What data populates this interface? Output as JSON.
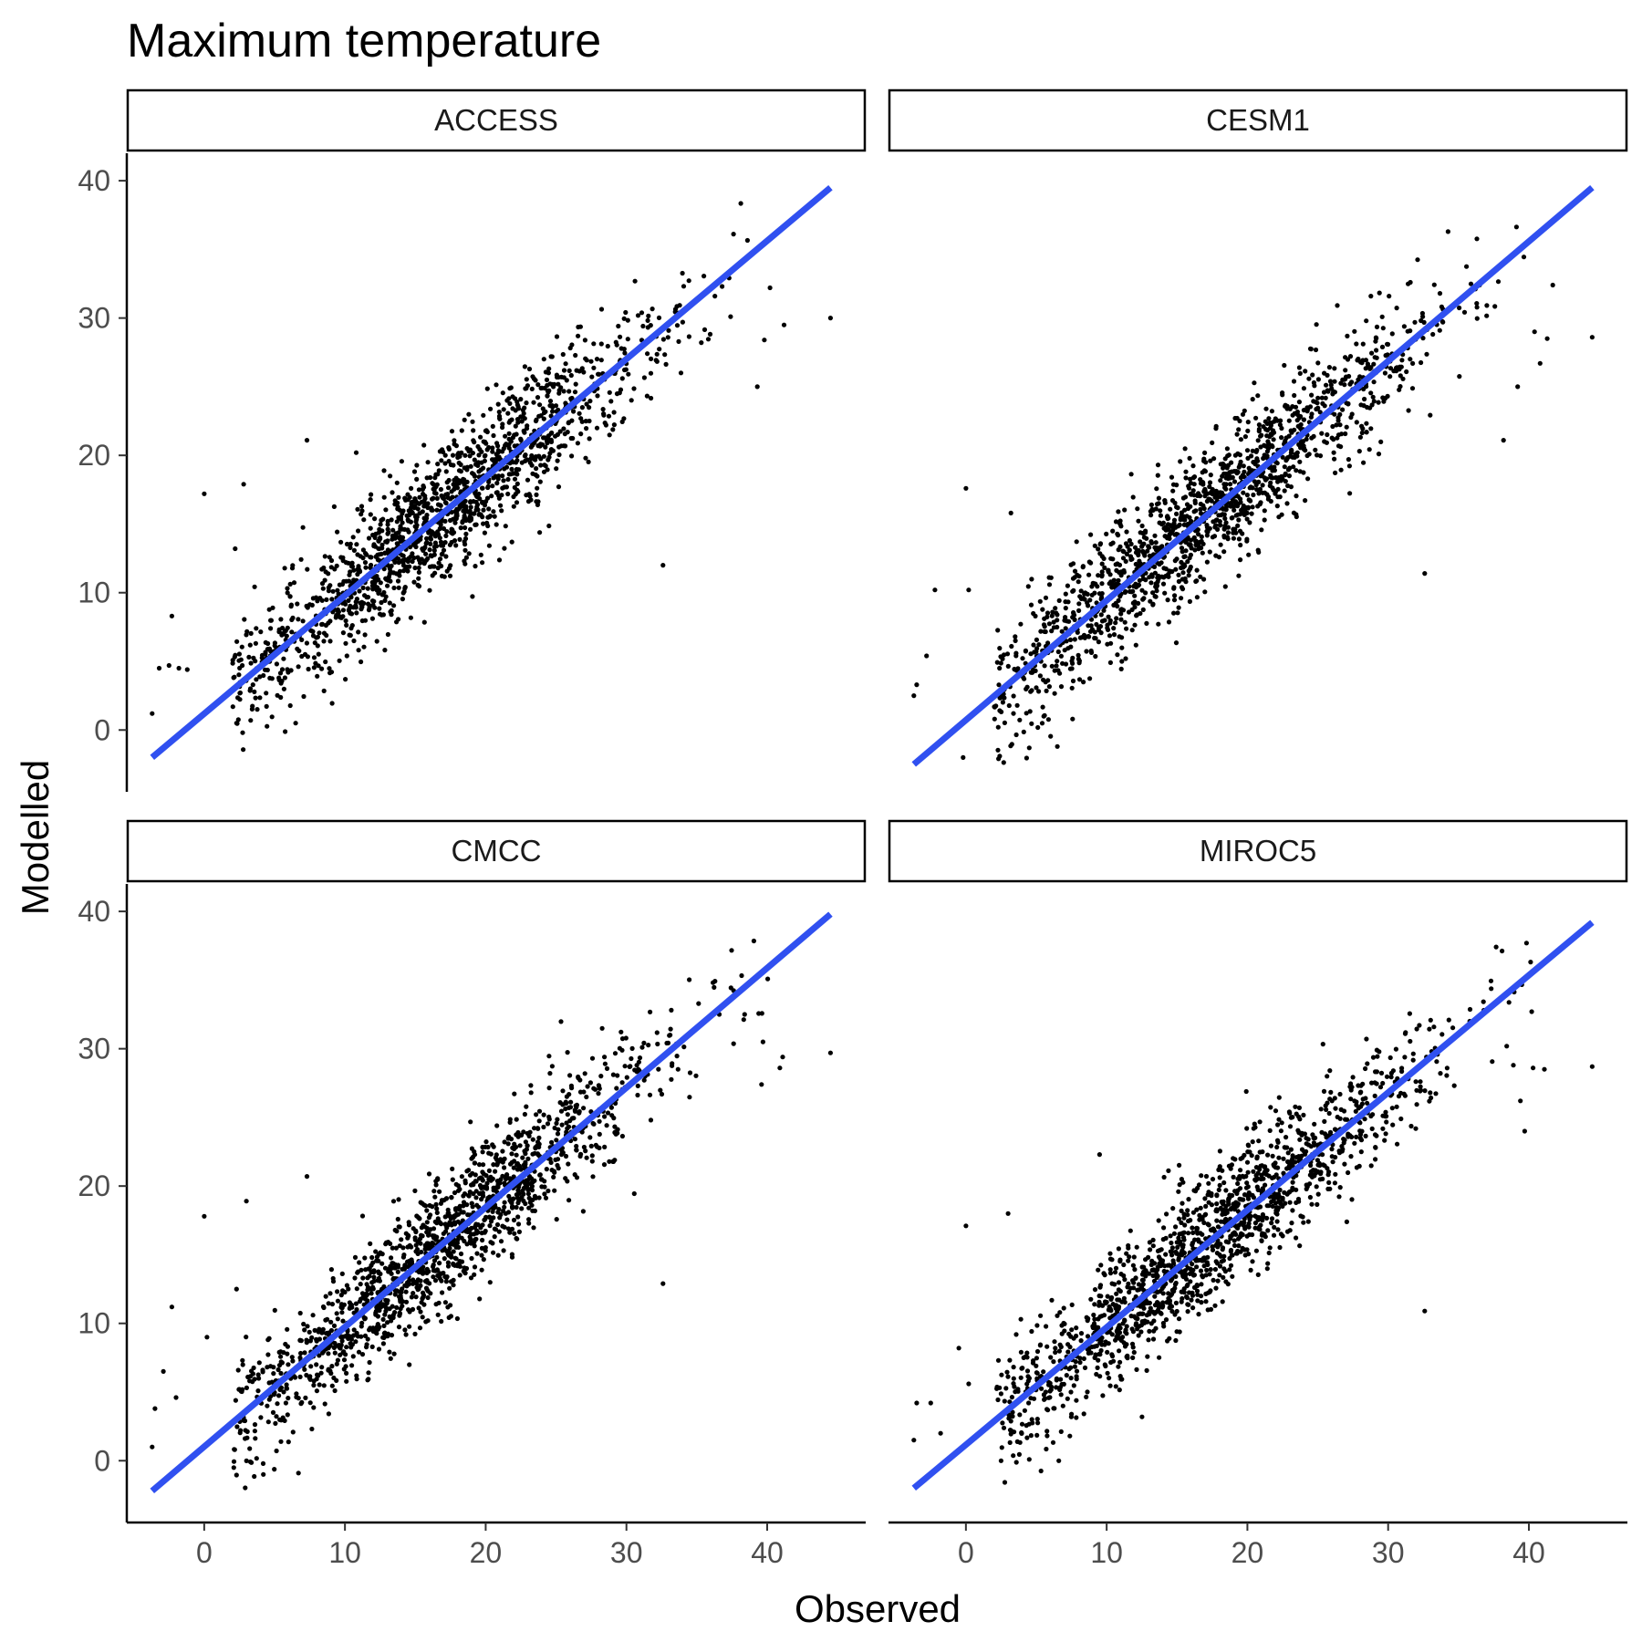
{
  "chart_data": {
    "type": "scatter",
    "title": "Maximum temperature",
    "xlabel": "Observed",
    "ylabel": "Modelled",
    "xlim": [
      -5.5,
      47
    ],
    "ylim": [
      -4.5,
      42
    ],
    "xticks": [
      0,
      10,
      20,
      30,
      40
    ],
    "yticks": [
      0,
      10,
      20,
      30,
      40
    ],
    "colors": {
      "points": "#000000",
      "fit_line": "#3050f0"
    },
    "panels": [
      {
        "name": "ACCESS",
        "fit_line": {
          "x": [
            -3.7,
            44.5
          ],
          "y": [
            -2.0,
            39.5
          ]
        },
        "cloud": {
          "n": 1500,
          "slope": 0.87,
          "intercept": 1.2,
          "noise": 2.4,
          "x_center": 17,
          "x_spread": 7.8
        },
        "outliers": [
          [
            -3.7,
            1.2
          ],
          [
            -3.2,
            4.5
          ],
          [
            -2.5,
            4.7
          ],
          [
            -2.3,
            8.3
          ],
          [
            -1.8,
            4.5
          ],
          [
            -1.2,
            4.4
          ],
          [
            0,
            17.2
          ],
          [
            2.2,
            13.2
          ],
          [
            2.8,
            17.9
          ],
          [
            2.3,
            0.5
          ],
          [
            3.3,
            0.7
          ],
          [
            6.5,
            0.5
          ],
          [
            7.3,
            21.1
          ],
          [
            10.8,
            20.2
          ],
          [
            27.1,
            19.8
          ],
          [
            32.6,
            12.0
          ],
          [
            44.5,
            30.0
          ],
          [
            39.3,
            25.0
          ],
          [
            41.2,
            29.5
          ],
          [
            40.2,
            32.2
          ],
          [
            36.8,
            32.3
          ],
          [
            37.4,
            30.1
          ],
          [
            39.8,
            28.4
          ]
        ]
      },
      {
        "name": "CESM1",
        "fit_line": {
          "x": [
            -3.7,
            44.5
          ],
          "y": [
            -2.5,
            39.5
          ]
        },
        "cloud": {
          "n": 1500,
          "slope": 0.87,
          "intercept": 0.8,
          "noise": 2.4,
          "x_center": 17,
          "x_spread": 7.8
        },
        "outliers": [
          [
            -3.7,
            2.5
          ],
          [
            -3.5,
            3.3
          ],
          [
            -2.8,
            5.4
          ],
          [
            -2.2,
            10.2
          ],
          [
            0,
            17.6
          ],
          [
            0.2,
            10.2
          ],
          [
            2.3,
            0.2
          ],
          [
            3.2,
            15.8
          ],
          [
            2.4,
            -1.9
          ],
          [
            4.5,
            -1.3
          ],
          [
            6.5,
            -1.2
          ],
          [
            -0.2,
            -2.0
          ],
          [
            32.6,
            11.4
          ],
          [
            38.2,
            21.1
          ],
          [
            44.5,
            28.6
          ],
          [
            40.4,
            29.0
          ],
          [
            41.3,
            28.5
          ],
          [
            39.2,
            25.0
          ],
          [
            40.8,
            26.7
          ],
          [
            41.7,
            32.4
          ],
          [
            36.5,
            32.4
          ]
        ]
      },
      {
        "name": "CMCC",
        "fit_line": {
          "x": [
            -3.7,
            44.5
          ],
          "y": [
            -2.2,
            39.8
          ]
        },
        "cloud": {
          "n": 1500,
          "slope": 0.87,
          "intercept": 1.0,
          "noise": 2.4,
          "x_center": 17,
          "x_spread": 7.8
        },
        "outliers": [
          [
            -3.7,
            1.0
          ],
          [
            -3.5,
            3.8
          ],
          [
            -2.9,
            6.5
          ],
          [
            -2.3,
            11.2
          ],
          [
            -2.0,
            4.6
          ],
          [
            0,
            17.8
          ],
          [
            0.2,
            9.0
          ],
          [
            2.3,
            12.5
          ],
          [
            3.0,
            18.9
          ],
          [
            2.1,
            -0.5
          ],
          [
            4.2,
            -1.0
          ],
          [
            6.7,
            -0.9
          ],
          [
            7.3,
            20.7
          ],
          [
            32.6,
            12.9
          ],
          [
            44.5,
            29.7
          ],
          [
            39.6,
            27.4
          ],
          [
            40.9,
            28.6
          ],
          [
            41.1,
            29.4
          ],
          [
            38.4,
            32.5
          ],
          [
            36.6,
            32.5
          ],
          [
            39.7,
            30.5
          ]
        ]
      },
      {
        "name": "MIROC5",
        "fit_line": {
          "x": [
            -3.7,
            44.5
          ],
          "y": [
            -2.0,
            39.2
          ]
        },
        "cloud": {
          "n": 1500,
          "slope": 0.87,
          "intercept": 1.0,
          "noise": 2.4,
          "x_center": 17,
          "x_spread": 7.8
        },
        "outliers": [
          [
            -3.7,
            1.5
          ],
          [
            -3.5,
            4.2
          ],
          [
            -2.5,
            4.2
          ],
          [
            -1.8,
            2.0
          ],
          [
            0,
            17.1
          ],
          [
            0.2,
            5.6
          ],
          [
            -0.5,
            8.2
          ],
          [
            3.0,
            18.0
          ],
          [
            2.5,
            0.0
          ],
          [
            4.5,
            0.1
          ],
          [
            6.6,
            0.0
          ],
          [
            9.5,
            22.3
          ],
          [
            32.6,
            10.9
          ],
          [
            44.5,
            28.7
          ],
          [
            39.7,
            24.0
          ],
          [
            40.3,
            28.6
          ],
          [
            41.1,
            28.5
          ],
          [
            40.2,
            32.7
          ],
          [
            36.8,
            32.8
          ],
          [
            38.9,
            28.8
          ],
          [
            39.4,
            26.2
          ]
        ]
      }
    ]
  }
}
